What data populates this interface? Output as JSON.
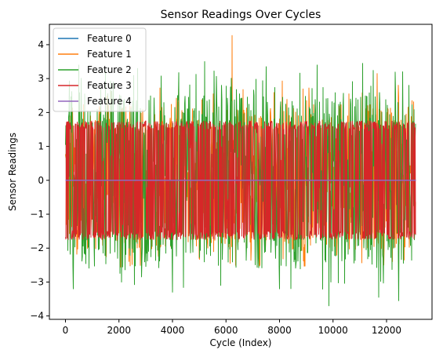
{
  "chart_data": {
    "type": "line",
    "title": "Sensor Readings Over Cycles",
    "xlabel": "Cycle (Index)",
    "ylabel": "Sensor Readings",
    "xlim": [
      -600,
      13700
    ],
    "ylim": [
      -4.1,
      4.6
    ],
    "xticks": [
      0,
      2000,
      4000,
      6000,
      8000,
      10000,
      12000
    ],
    "yticks": [
      -4,
      -3,
      -2,
      -1,
      0,
      1,
      2,
      3,
      4
    ],
    "grid": false,
    "legend_position": "top-left",
    "x_range": [
      0,
      13096
    ],
    "series": [
      {
        "name": "Feature 0",
        "color": "#1f77b4",
        "points": [
          [
            0,
            0
          ],
          [
            13096,
            0
          ]
        ]
      },
      {
        "name": "Feature 1",
        "color": "#ff7f0e",
        "band": [
          -2.05,
          2.25
        ],
        "peaks": [
          [
            6230,
            4.27
          ],
          [
            8100,
            2.93
          ],
          [
            10600,
            2.55
          ],
          [
            11650,
            3.15
          ],
          [
            12950,
            2.35
          ],
          [
            4200,
            2.3
          ],
          [
            2100,
            2.1
          ]
        ]
      },
      {
        "name": "Feature 2",
        "color": "#2ca02c",
        "band": [
          -2.6,
          2.6
        ],
        "peaks": [
          [
            500,
            3.4
          ],
          [
            1500,
            3.2
          ],
          [
            2700,
            3.3
          ],
          [
            5200,
            3.5
          ],
          [
            7500,
            3.35
          ],
          [
            9400,
            3.4
          ],
          [
            11100,
            3.45
          ],
          [
            12600,
            3.2
          ]
        ],
        "troughs": [
          [
            300,
            -3.2
          ],
          [
            2100,
            -3.0
          ],
          [
            4000,
            -3.3
          ],
          [
            5800,
            -3.1
          ],
          [
            8000,
            -3.2
          ],
          [
            9850,
            -3.7
          ],
          [
            11700,
            -3.45
          ],
          [
            12450,
            -3.55
          ]
        ]
      },
      {
        "name": "Feature 3",
        "color": "#d62728",
        "band": [
          -1.75,
          1.75
        ]
      },
      {
        "name": "Feature 4",
        "color": "#9467bd",
        "points": [
          [
            0,
            0
          ],
          [
            13096,
            0
          ]
        ]
      }
    ]
  }
}
